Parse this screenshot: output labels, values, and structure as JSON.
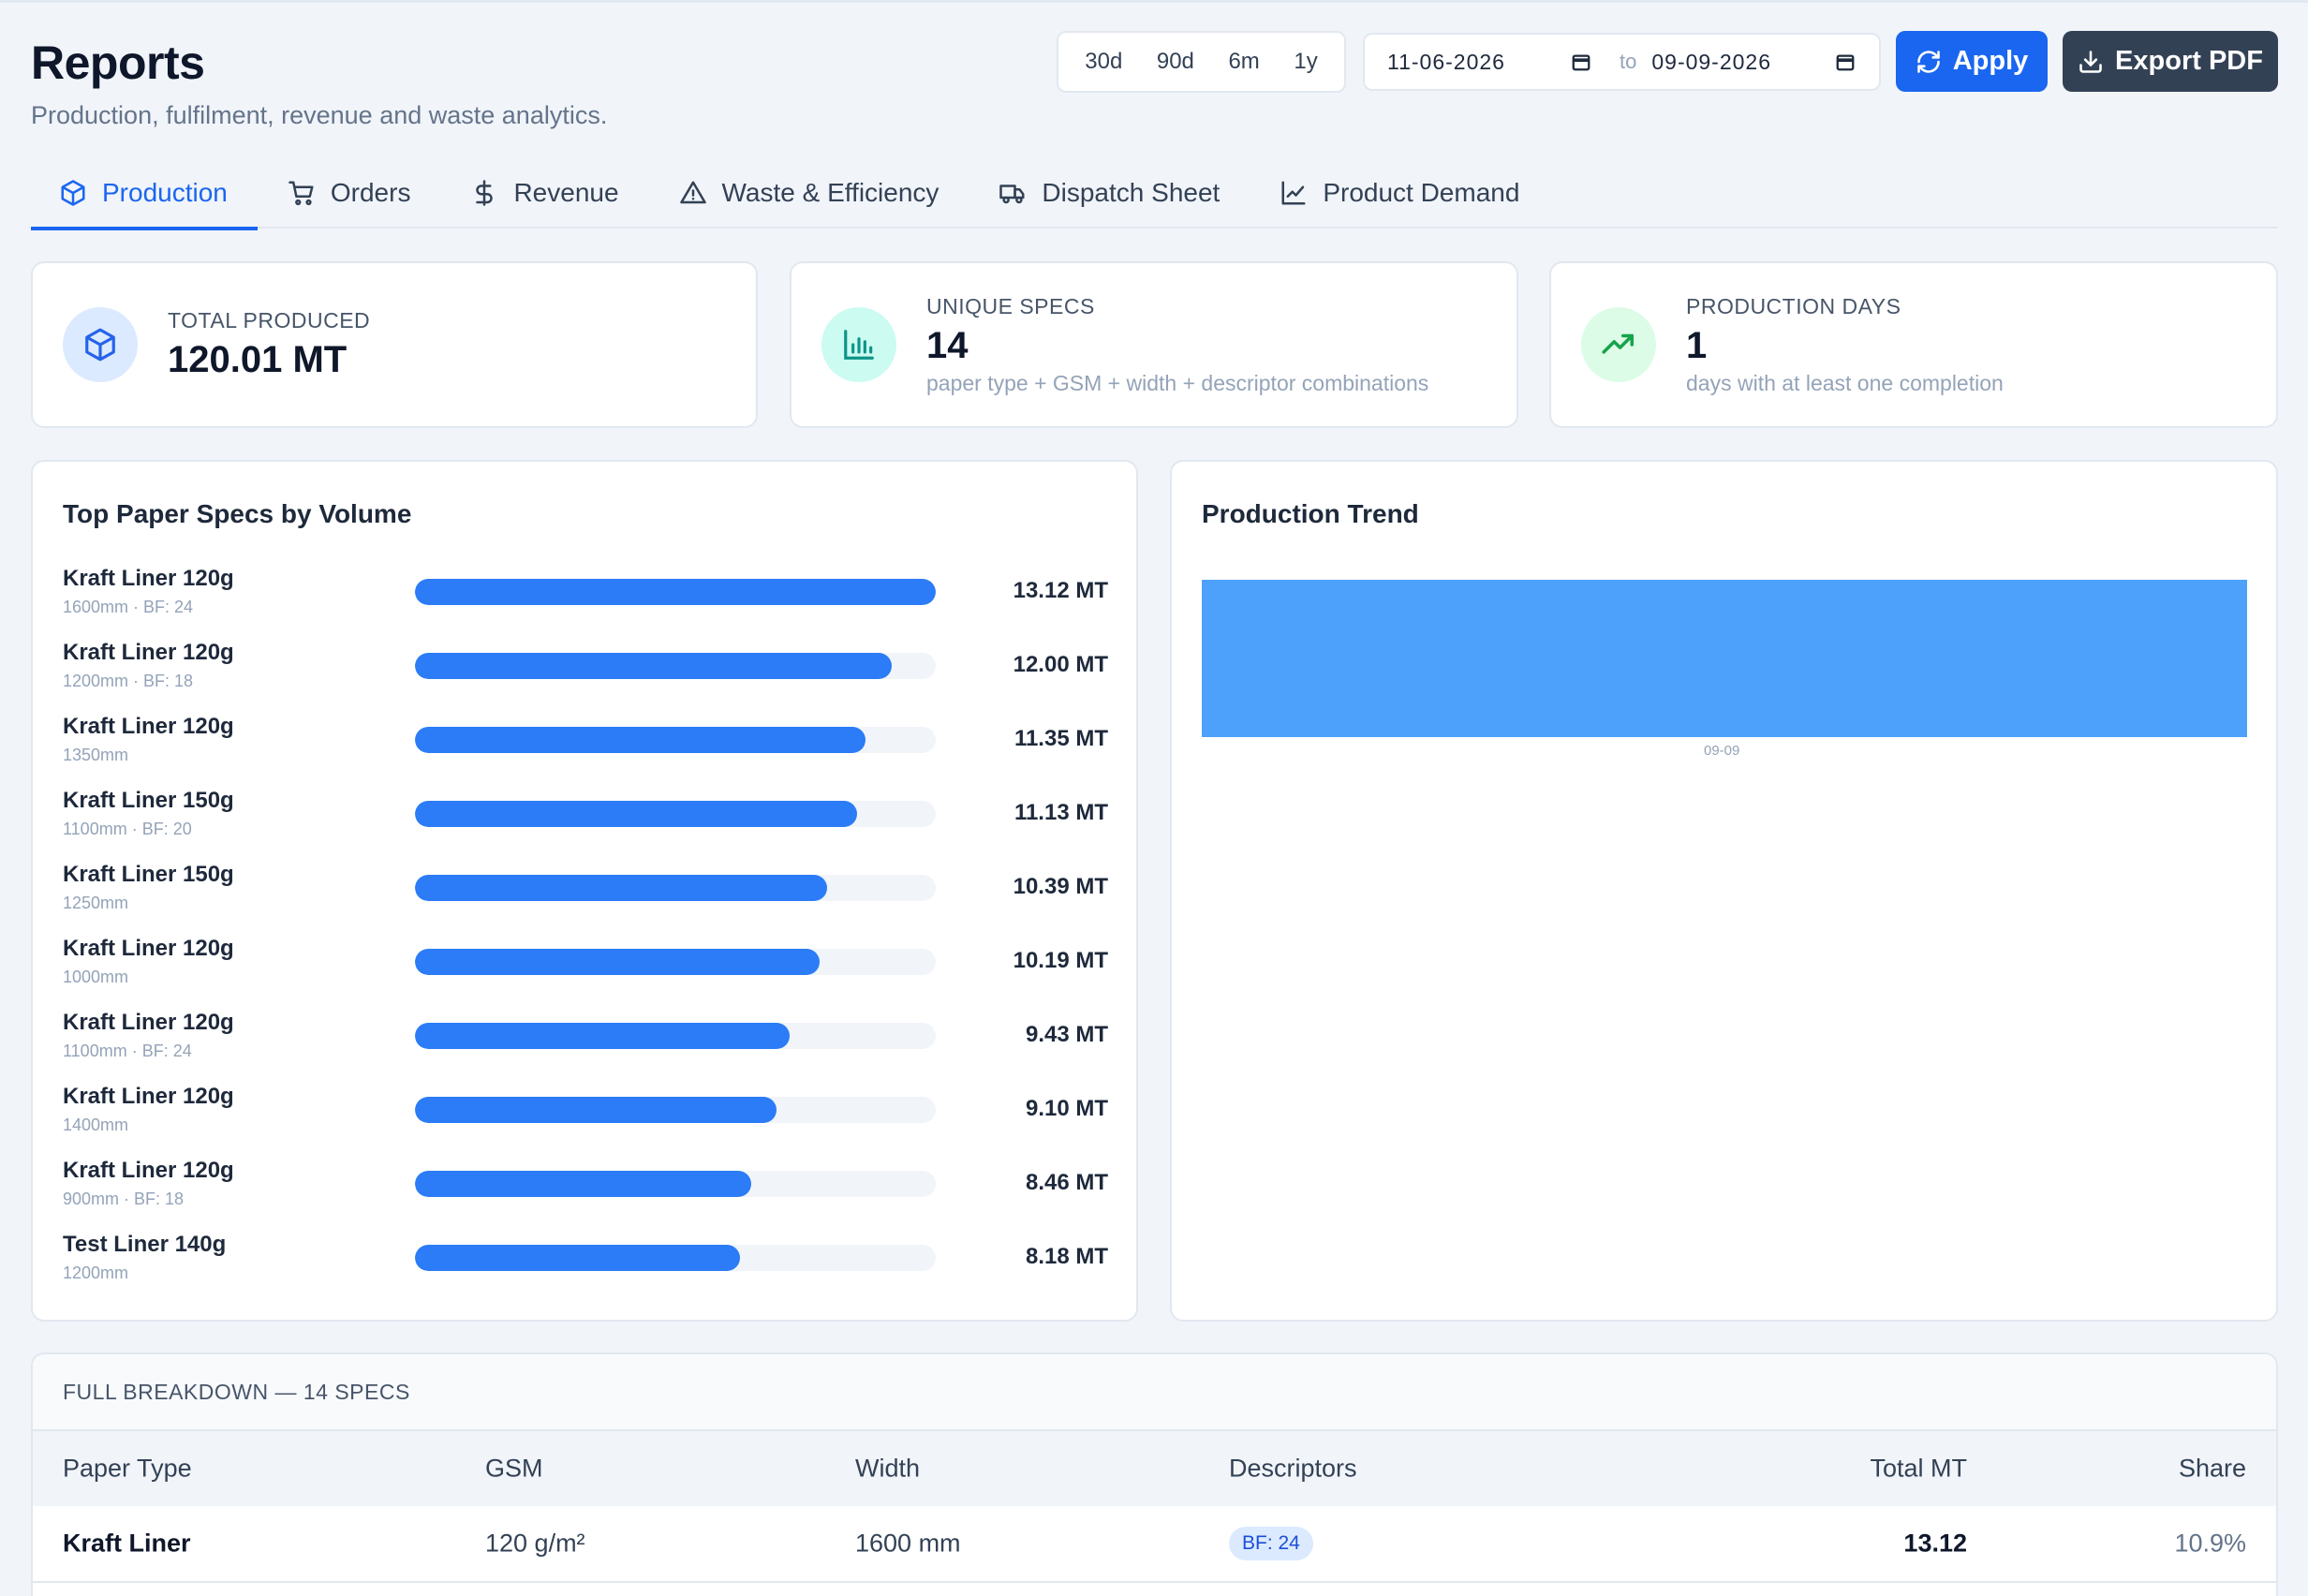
{
  "header": {
    "title": "Reports",
    "subtitle": "Production, fulfilment, revenue and waste analytics."
  },
  "range_buttons": [
    "30d",
    "90d",
    "6m",
    "1y"
  ],
  "date_range": {
    "from": "11-06-2026",
    "to_label": "to",
    "to": "09-09-2026"
  },
  "actions": {
    "apply": "Apply",
    "export": "Export PDF"
  },
  "tabs": [
    {
      "label": "Production",
      "icon": "box-icon",
      "active": true
    },
    {
      "label": "Orders",
      "icon": "cart-icon"
    },
    {
      "label": "Revenue",
      "icon": "dollar-icon"
    },
    {
      "label": "Waste & Efficiency",
      "icon": "warning-icon"
    },
    {
      "label": "Dispatch Sheet",
      "icon": "truck-icon"
    },
    {
      "label": "Product Demand",
      "icon": "line-chart-icon"
    }
  ],
  "kpis": [
    {
      "label": "Total Produced",
      "value": "120.01 MT",
      "desc": "",
      "icon": "box-icon",
      "color": "#2563eb",
      "bg": "#dbeafe"
    },
    {
      "label": "Unique Specs",
      "value": "14",
      "desc": "paper type + GSM + width + descriptor combinations",
      "icon": "bar-chart-icon",
      "color": "#0d9488",
      "bg": "#ccfbf1"
    },
    {
      "label": "Production Days",
      "value": "1",
      "desc": "days with at least one completion",
      "icon": "trending-up-icon",
      "color": "#16a34a",
      "bg": "#dcfce7"
    }
  ],
  "top_specs": {
    "title": "Top Paper Specs by Volume",
    "max": 13.12,
    "items": [
      {
        "name": "Kraft Liner 120g",
        "sub": "1600mm · BF: 24",
        "value": 13.12,
        "label": "13.12 MT"
      },
      {
        "name": "Kraft Liner 120g",
        "sub": "1200mm · BF: 18",
        "value": 12.0,
        "label": "12.00 MT"
      },
      {
        "name": "Kraft Liner 120g",
        "sub": "1350mm",
        "value": 11.35,
        "label": "11.35 MT"
      },
      {
        "name": "Kraft Liner 150g",
        "sub": "1100mm · BF: 20",
        "value": 11.13,
        "label": "11.13 MT"
      },
      {
        "name": "Kraft Liner 150g",
        "sub": "1250mm",
        "value": 10.39,
        "label": "10.39 MT"
      },
      {
        "name": "Kraft Liner 120g",
        "sub": "1000mm",
        "value": 10.19,
        "label": "10.19 MT"
      },
      {
        "name": "Kraft Liner 120g",
        "sub": "1100mm · BF: 24",
        "value": 9.43,
        "label": "9.43 MT"
      },
      {
        "name": "Kraft Liner 120g",
        "sub": "1400mm",
        "value": 9.1,
        "label": "9.10 MT"
      },
      {
        "name": "Kraft Liner 120g",
        "sub": "900mm · BF: 18",
        "value": 8.46,
        "label": "8.46 MT"
      },
      {
        "name": "Test Liner 140g",
        "sub": "1200mm",
        "value": 8.18,
        "label": "8.18 MT"
      }
    ]
  },
  "trend": {
    "title": "Production Trend",
    "x": [
      "09-09"
    ],
    "values": [
      120.01
    ]
  },
  "breakdown": {
    "title": "FULL BREAKDOWN — 14 SPECS",
    "columns": [
      "Paper Type",
      "GSM",
      "Width",
      "Descriptors",
      "Total MT",
      "Share"
    ],
    "rows": [
      {
        "paper_type": "Kraft Liner",
        "gsm": "120 g/m²",
        "width": "1600 mm",
        "descriptor": "BF: 24",
        "total": "13.12",
        "share": "10.9%"
      }
    ]
  },
  "chart_data": {
    "type": "bar",
    "title": "Top Paper Specs by Volume",
    "categories": [
      "Kraft Liner 120g 1600mm · BF: 24",
      "Kraft Liner 120g 1200mm · BF: 18",
      "Kraft Liner 120g 1350mm",
      "Kraft Liner 150g 1100mm · BF: 20",
      "Kraft Liner 150g 1250mm",
      "Kraft Liner 120g 1000mm",
      "Kraft Liner 120g 1100mm · BF: 24",
      "Kraft Liner 120g 1400mm",
      "Kraft Liner 120g 900mm · BF: 18",
      "Test Liner 140g 1200mm"
    ],
    "values": [
      13.12,
      12.0,
      11.35,
      11.13,
      10.39,
      10.19,
      9.43,
      9.1,
      8.46,
      8.18
    ]
  }
}
